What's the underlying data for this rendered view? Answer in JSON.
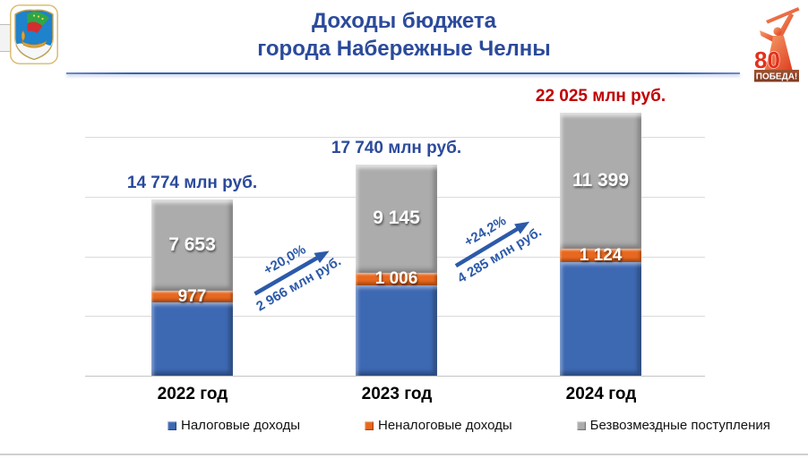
{
  "slide": {
    "title_line1": "Доходы бюджета",
    "title_line2": "города Набережные Челны"
  },
  "logos": {
    "coat_of_arms": "naberezhnye-chelny-city-emblem",
    "victory": {
      "number": "80",
      "caption": "ПОБЕДА!"
    }
  },
  "chart_data": {
    "type": "bar",
    "stacked": true,
    "unit": "млн руб.",
    "categories": [
      "2022 год",
      "2023 год",
      "2024 год"
    ],
    "series": [
      {
        "name": "Налоговые доходы",
        "color": "#3D68B2",
        "values": [
          6144,
          7589,
          9502
        ],
        "labels": [
          "",
          "",
          ""
        ]
      },
      {
        "name": "Неналоговые доходы",
        "color": "#E8681E",
        "values": [
          977,
          1006,
          1124
        ],
        "labels": [
          "977",
          "1 006",
          "1 124"
        ]
      },
      {
        "name": "Безвозмездные поступления",
        "color": "#ACACAC",
        "values": [
          7653,
          9145,
          11399
        ],
        "labels": [
          "7 653",
          "9 145",
          "11 399"
        ]
      }
    ],
    "totals": [
      {
        "label": "14 774 млн руб.",
        "value": 14774,
        "color": "#2B4A9B"
      },
      {
        "label": "17 740 млн руб.",
        "value": 17740,
        "color": "#2B4A9B"
      },
      {
        "label": "22 025 млн руб.",
        "value": 22025,
        "color": "#C00000"
      }
    ],
    "growth": [
      {
        "percent": "+20,0%",
        "amount": "2 966 млн руб."
      },
      {
        "percent": "+24,2%",
        "amount": "4 285 млн руб."
      }
    ],
    "ylim": [
      0,
      25000
    ],
    "gridline_step": 5000,
    "grid": true,
    "legend_position": "bottom",
    "colors": {
      "title": "#2B4A9B",
      "arrow": "#2C5AA9",
      "gridline": "#DADADA",
      "total_highlight": "#C00000"
    }
  },
  "legend": {
    "items": [
      {
        "label": "Налоговые доходы",
        "color": "#3D68B2"
      },
      {
        "label": "Неналоговые доходы",
        "color": "#E8681E"
      },
      {
        "label": "Безвозмездные поступления",
        "color": "#ACACAC"
      }
    ]
  }
}
